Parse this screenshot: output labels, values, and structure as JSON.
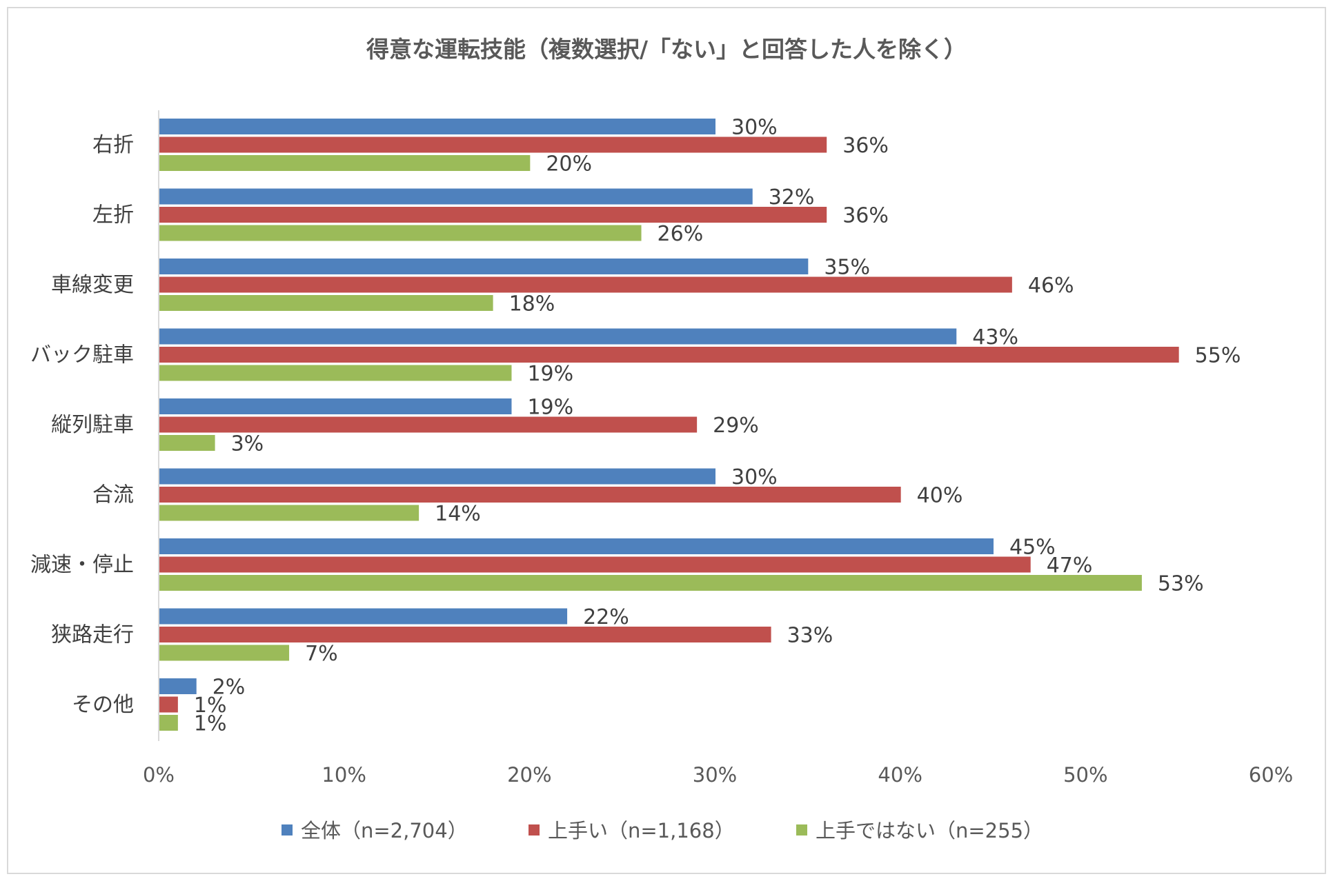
{
  "chart_data": {
    "type": "bar",
    "orientation": "horizontal",
    "title": "得意な運転技能（複数選択/「ない」と回答した人を除く）",
    "categories": [
      "右折",
      "左折",
      "車線変更",
      "バック駐車",
      "縦列駐車",
      "合流",
      "減速・停止",
      "狭路走行",
      "その他"
    ],
    "series": [
      {
        "name": "全体（n=2,704）",
        "color": "#4F81BD",
        "values": [
          30,
          32,
          35,
          43,
          19,
          30,
          45,
          22,
          2
        ],
        "labels": [
          "30%",
          "32%",
          "35%",
          "43%",
          "19%",
          "30%",
          "45%",
          "22%",
          "2%"
        ]
      },
      {
        "name": "上手い（n=1,168）",
        "color": "#C0504D",
        "values": [
          36,
          36,
          46,
          55,
          29,
          40,
          47,
          33,
          1
        ],
        "labels": [
          "36%",
          "36%",
          "46%",
          "55%",
          "29%",
          "40%",
          "47%",
          "33%",
          "1%"
        ]
      },
      {
        "name": "上手ではない（n=255）",
        "color": "#9BBB59",
        "values": [
          20,
          26,
          18,
          19,
          3,
          14,
          53,
          7,
          1
        ],
        "labels": [
          "20%",
          "26%",
          "18%",
          "19%",
          "3%",
          "14%",
          "53%",
          "7%",
          "1%"
        ]
      }
    ],
    "xlim": [
      0,
      60
    ],
    "ticks": [
      0,
      10,
      20,
      30,
      40,
      50,
      60
    ],
    "tick_labels": [
      "0%",
      "10%",
      "20%",
      "30%",
      "40%",
      "50%",
      "60%"
    ],
    "xlabel": "",
    "ylabel": "",
    "grid": false,
    "legend_position": "bottom"
  }
}
